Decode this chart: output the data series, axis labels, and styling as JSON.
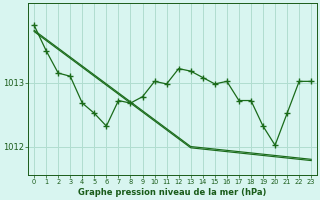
{
  "x_values": [
    0,
    1,
    2,
    3,
    4,
    5,
    6,
    7,
    8,
    9,
    10,
    11,
    12,
    13,
    14,
    15,
    16,
    17,
    18,
    19,
    20,
    21,
    22,
    23
  ],
  "y_data": [
    1013.9,
    1013.5,
    1013.15,
    1013.1,
    1012.68,
    1012.52,
    1012.32,
    1012.72,
    1012.68,
    1012.78,
    1013.02,
    1012.98,
    1013.22,
    1013.18,
    1013.08,
    1012.98,
    1013.02,
    1012.72,
    1012.72,
    1012.32,
    1012.02,
    1012.52,
    1013.02,
    1013.02
  ],
  "y_linear1": [
    1013.82,
    1013.68,
    1013.54,
    1013.4,
    1013.26,
    1013.12,
    1012.98,
    1012.84,
    1012.7,
    1012.56,
    1012.42,
    1012.28,
    1012.14,
    1012.0,
    1011.98,
    1011.96,
    1011.94,
    1011.92,
    1011.9,
    1011.88,
    1011.86,
    1011.84,
    1011.82,
    1011.8
  ],
  "y_linear2": [
    1013.8,
    1013.66,
    1013.52,
    1013.38,
    1013.24,
    1013.1,
    1012.96,
    1012.82,
    1012.68,
    1012.54,
    1012.4,
    1012.26,
    1012.12,
    1011.98,
    1011.96,
    1011.94,
    1011.92,
    1011.9,
    1011.88,
    1011.86,
    1011.84,
    1011.82,
    1011.8,
    1011.78
  ],
  "line_color": "#1a6b1a",
  "bg_color": "#d8f5f0",
  "grid_color": "#b0ddd0",
  "text_color": "#1a5c1a",
  "ylim_min": 1011.55,
  "ylim_max": 1014.25,
  "yticks": [
    1012,
    1013
  ],
  "xticks": [
    0,
    1,
    2,
    3,
    4,
    5,
    6,
    7,
    8,
    9,
    10,
    11,
    12,
    13,
    14,
    15,
    16,
    17,
    18,
    19,
    20,
    21,
    22,
    23
  ],
  "xlabel": "Graphe pression niveau de la mer (hPa)"
}
